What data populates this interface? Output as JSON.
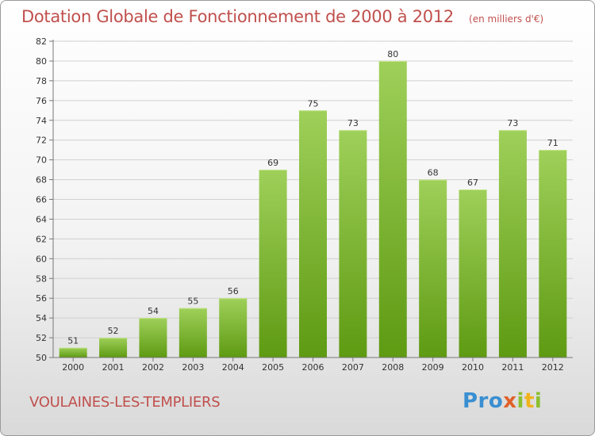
{
  "title": "Dotation Globale de Fonctionnement de 2000 à 2012",
  "subtitle": "(en milliers d'€)",
  "commune": "VOULAINES-LES-TEMPLIERS",
  "logo": {
    "part1": "Pro",
    "part2": "x",
    "part3": "i",
    "part4": "t",
    "part5": "i"
  },
  "colors": {
    "bar_top": "#9fd05a",
    "bar_bottom": "#5e9a12",
    "title": "#c0504d"
  },
  "chart_data": {
    "type": "bar",
    "title": "Dotation Globale de Fonctionnement de 2000 à 2012",
    "subtitle": "(en milliers d'€)",
    "xlabel": "",
    "ylabel": "",
    "categories": [
      "2000",
      "2001",
      "2002",
      "2003",
      "2004",
      "2005",
      "2006",
      "2007",
      "2008",
      "2009",
      "2010",
      "2011",
      "2012"
    ],
    "values": [
      51,
      52,
      54,
      55,
      56,
      69,
      75,
      73,
      80,
      68,
      67,
      73,
      71
    ],
    "ylim": [
      50,
      82
    ],
    "yticks": [
      50,
      52,
      54,
      56,
      58,
      60,
      62,
      64,
      66,
      68,
      70,
      72,
      74,
      76,
      78,
      80,
      82
    ],
    "grid": true
  }
}
